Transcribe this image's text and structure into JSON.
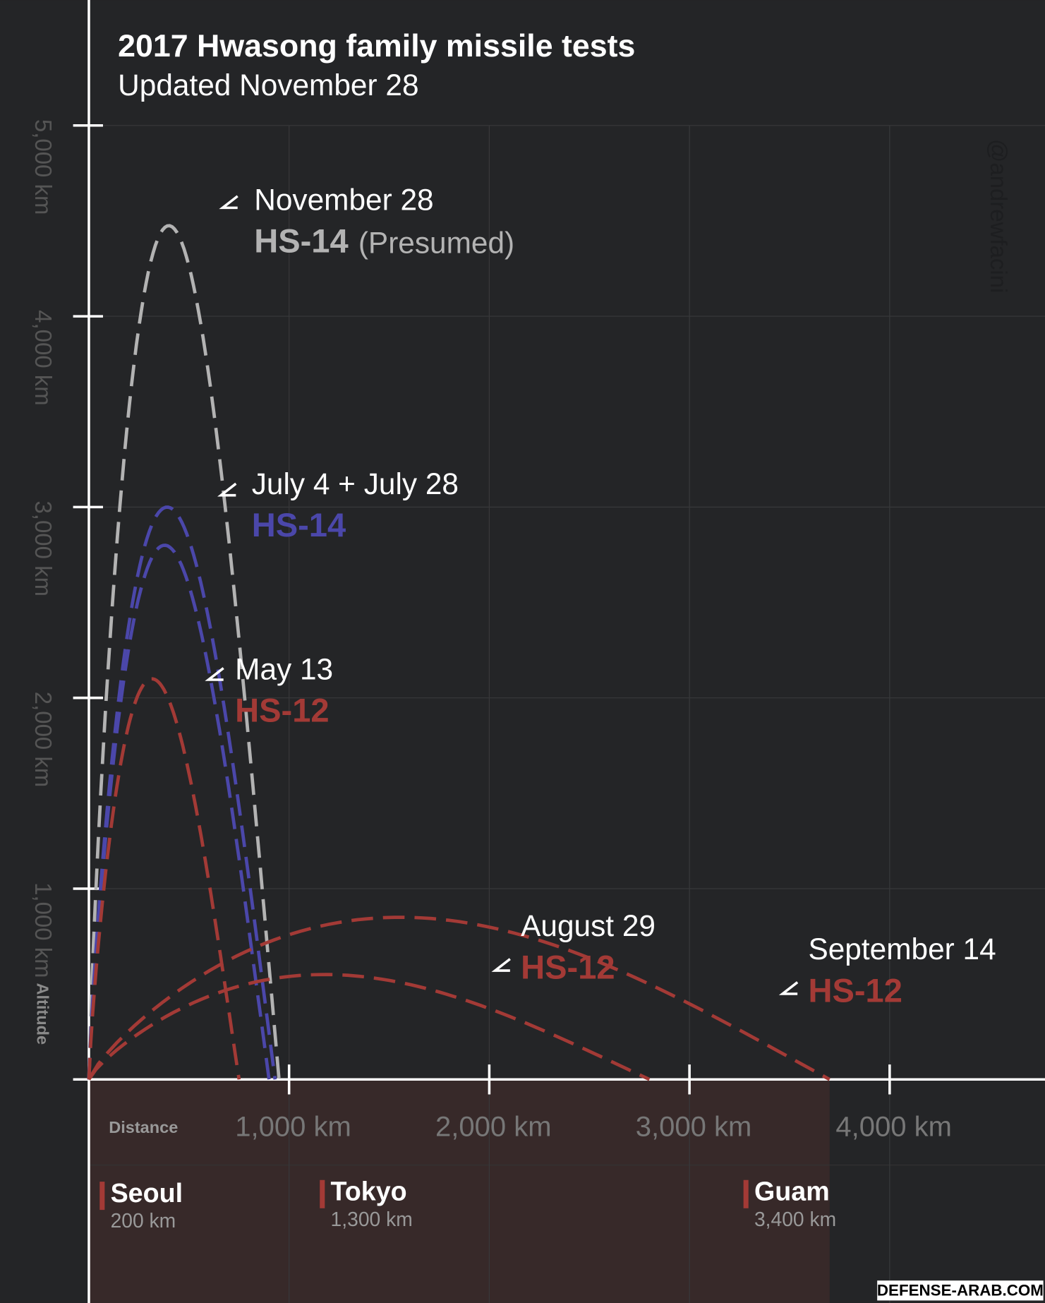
{
  "chart_data": {
    "type": "trajectory",
    "title": "2017 Hwasong family missile tests",
    "subtitle": "Updated November 28",
    "x_label": "Distance",
    "y_label": "Altitude",
    "credit": "@andrewfacini",
    "watermark": "DEFENSE-ARAB.COM",
    "xlim": [
      0,
      4700
    ],
    "ylim": [
      0,
      5000
    ],
    "xticks": [
      {
        "value": 1000,
        "label": "1,000 km"
      },
      {
        "value": 2000,
        "label": "2,000 km"
      },
      {
        "value": 3000,
        "label": "3,000 km"
      },
      {
        "value": 4000,
        "label": "4,000 km"
      }
    ],
    "yticks": [
      {
        "value": 1000,
        "label": "1,000 km"
      },
      {
        "value": 2000,
        "label": "2,000 km"
      },
      {
        "value": 3000,
        "label": "3,000 km"
      },
      {
        "value": 4000,
        "label": "4,000 km"
      },
      {
        "value": 5000,
        "label": "5,000 km"
      }
    ],
    "grid": true,
    "series": [
      {
        "color": "#b3b3b3",
        "range": 950,
        "apogee": 4475
      },
      {
        "color": "#4b47aa",
        "range": 930,
        "apogee": 3000
      },
      {
        "color": "#4b47aa",
        "range": 900,
        "apogee": 2800
      },
      {
        "color": "#a33a36",
        "range": 750,
        "apogee": 2100
      },
      {
        "color": "#a33a36",
        "range": 2800,
        "apogee": 550
      },
      {
        "color": "#a33a36",
        "range": 3700,
        "apogee": 850
      }
    ],
    "annotations": [
      {
        "date": "November 28",
        "missile": "HS-14",
        "note": "(Presumed)",
        "color": "#b3b3b3"
      },
      {
        "date": "July 4 + July 28",
        "missile": "HS-14",
        "color": "#4b47aa"
      },
      {
        "date": "May 13",
        "missile": "HS-12",
        "color": "#a33a36"
      },
      {
        "date": "August 29",
        "missile": "HS-12",
        "color": "#a33a36"
      },
      {
        "date": "September 14",
        "missile": "HS-12",
        "color": "#a33a36"
      }
    ],
    "cities": [
      {
        "name": "Seoul",
        "distance": "200 km"
      },
      {
        "name": "Tokyo",
        "distance": "1,300 km"
      },
      {
        "name": "Guam",
        "distance": "3,400 km"
      }
    ]
  }
}
